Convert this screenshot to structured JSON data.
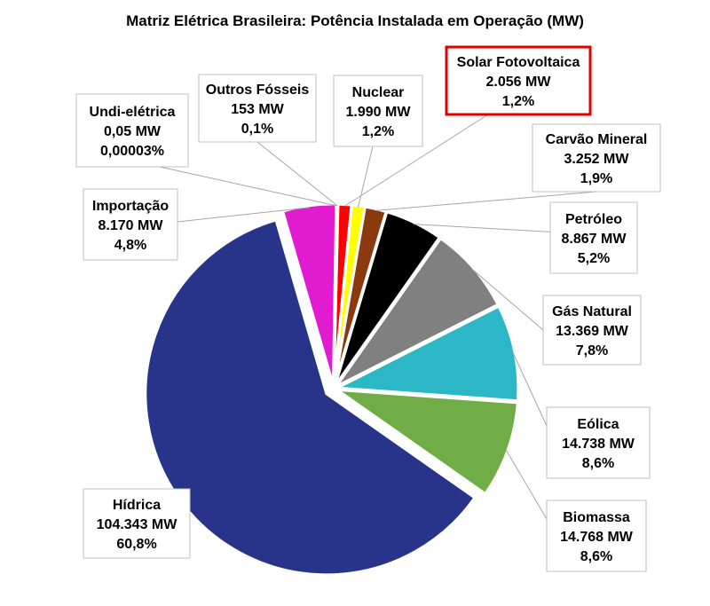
{
  "chart_data": {
    "type": "pie",
    "title": "Matriz Elétrica Brasileira: Potência Instalada em Operação (MW)",
    "slices": [
      {
        "name": "Solar Fotovoltaica",
        "value_text": "2.056 MW",
        "percent_text": "1,2%",
        "value": 2056,
        "percent": 1.2,
        "color": "#ff0000",
        "highlighted": true
      },
      {
        "name": "Nuclear",
        "value_text": "1.990 MW",
        "percent_text": "1,2%",
        "value": 1990,
        "percent": 1.2,
        "color": "#ffff00"
      },
      {
        "name": "Carvão Mineral",
        "value_text": "3.252 MW",
        "percent_text": "1,9%",
        "value": 3252,
        "percent": 1.9,
        "color": "#8b3a0f"
      },
      {
        "name": "Petróleo",
        "value_text": "8.867 MW",
        "percent_text": "5,2%",
        "value": 8867,
        "percent": 5.2,
        "color": "#000000"
      },
      {
        "name": "Gás Natural",
        "value_text": "13.369 MW",
        "percent_text": "7,8%",
        "value": 13369,
        "percent": 7.8,
        "color": "#808080"
      },
      {
        "name": "Eólica",
        "value_text": "14.738 MW",
        "percent_text": "8,6%",
        "value": 14738,
        "percent": 8.6,
        "color": "#2bb7c6"
      },
      {
        "name": "Biomassa",
        "value_text": "14.768 MW",
        "percent_text": "8,6%",
        "value": 14768,
        "percent": 8.6,
        "color": "#70ad47"
      },
      {
        "name": "Hídrica",
        "value_text": "104.343 MW",
        "percent_text": "60,8%",
        "value": 104343,
        "percent": 60.8,
        "color": "#28348a"
      },
      {
        "name": "Importação",
        "value_text": "8.170 MW",
        "percent_text": "4,8%",
        "value": 8170,
        "percent": 4.8,
        "color": "#e31bd0"
      },
      {
        "name": "Undi-elétrica",
        "value_text": "0,05 MW",
        "percent_text": "0,00003%",
        "value": 0.05,
        "percent": 3e-05,
        "color": "#000000"
      },
      {
        "name": "Outros Fósseis",
        "value_text": "153 MW",
        "percent_text": "0,1%",
        "value": 153,
        "percent": 0.1,
        "color": "#000000"
      }
    ]
  }
}
